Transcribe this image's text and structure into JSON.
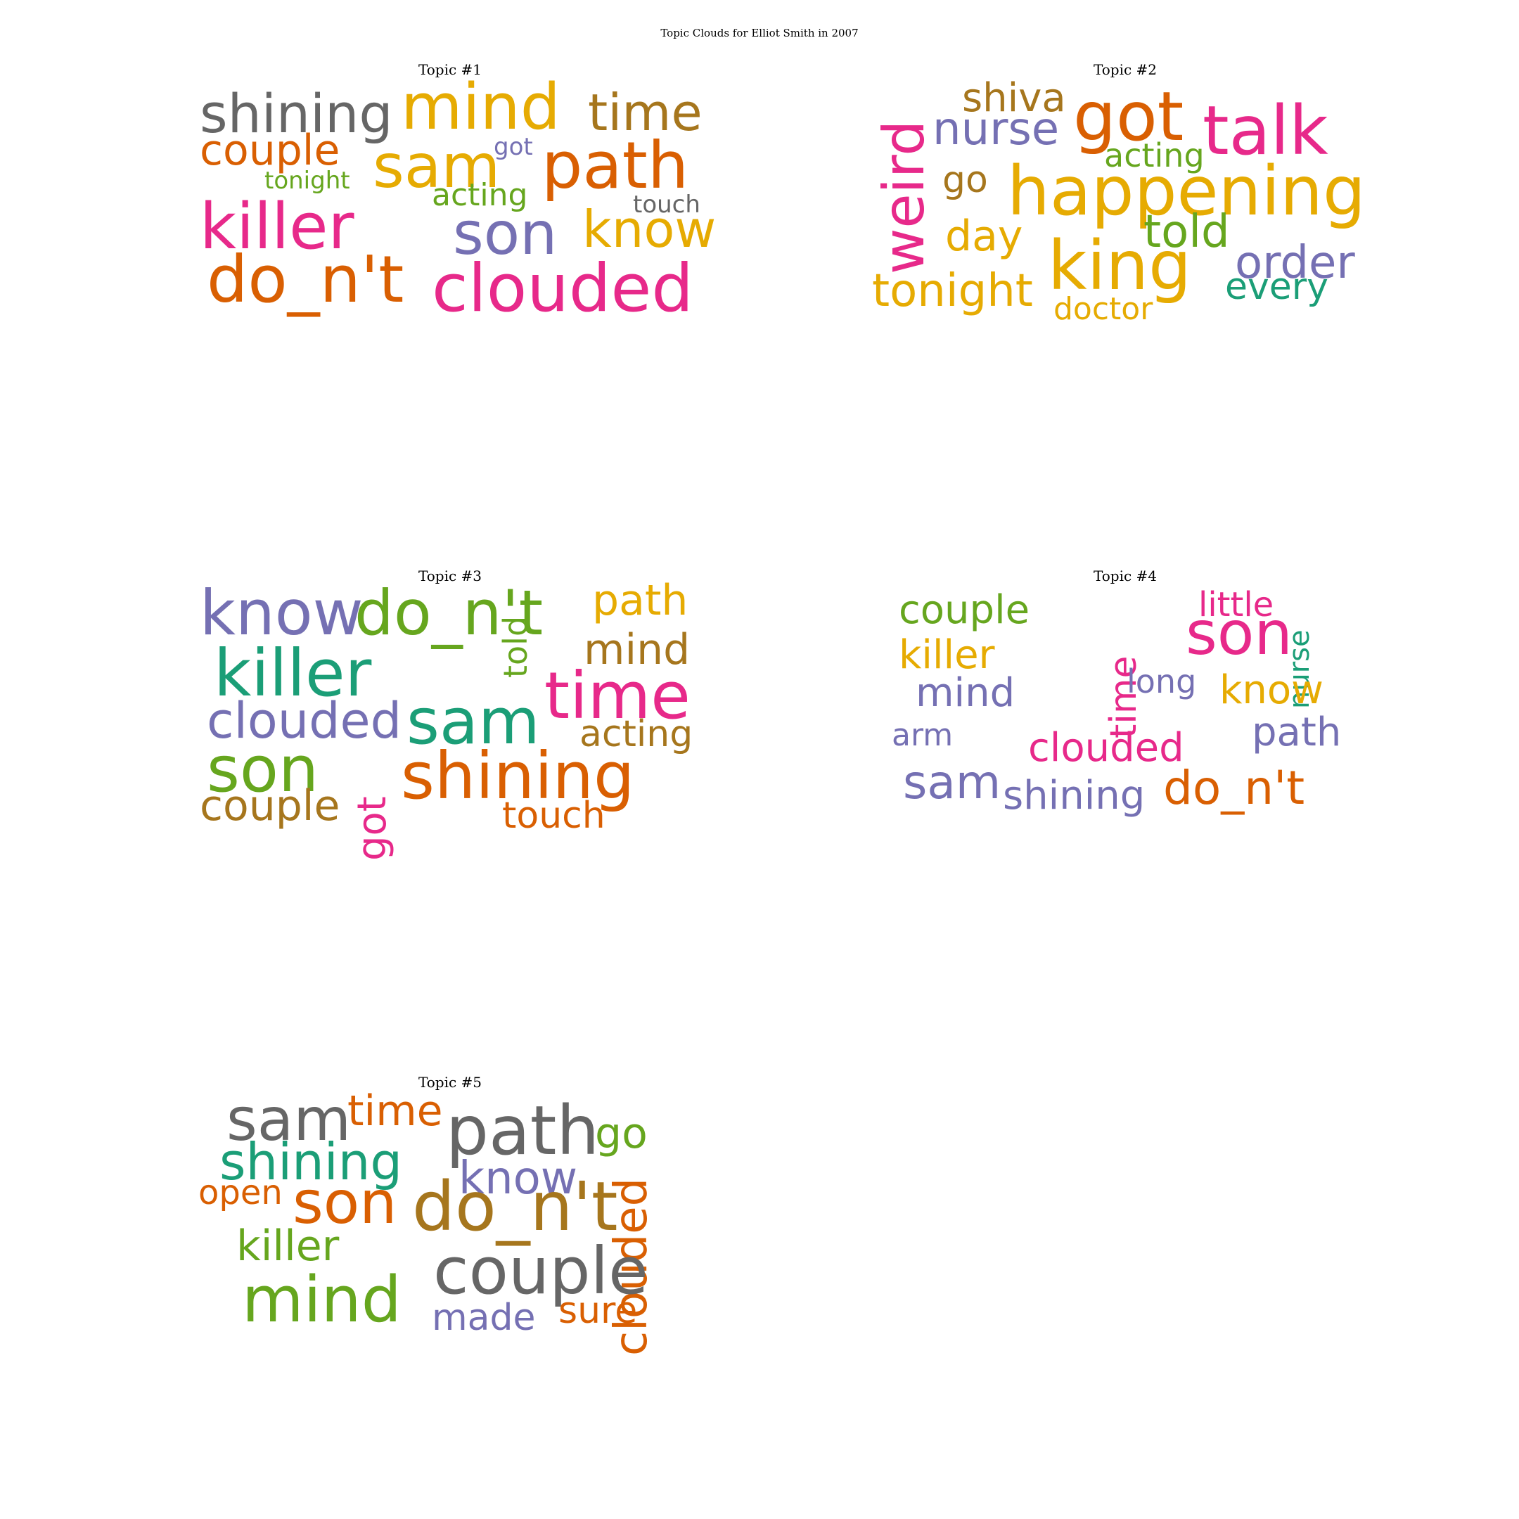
{
  "title": "Topic Clouds for Elliot Smith in 2007",
  "colors": {
    "magenta": "#e7298a",
    "orange": "#d95f02",
    "gold": "#e6ab02",
    "purple": "#7570b3",
    "green": "#66a61e",
    "teal": "#1b9e77",
    "brown": "#a6761d",
    "gray": "#666666"
  },
  "panels": [
    {
      "title": "Topic #1",
      "words": [
        {
          "text": "shining",
          "color": "gray"
        },
        {
          "text": "mind",
          "color": "gold"
        },
        {
          "text": "time",
          "color": "brown"
        },
        {
          "text": "couple",
          "color": "orange"
        },
        {
          "text": "got",
          "color": "purple"
        },
        {
          "text": "sam",
          "color": "gold"
        },
        {
          "text": "path",
          "color": "orange"
        },
        {
          "text": "tonight",
          "color": "green"
        },
        {
          "text": "acting",
          "color": "green"
        },
        {
          "text": "touch",
          "color": "gray"
        },
        {
          "text": "killer",
          "color": "magenta"
        },
        {
          "text": "son",
          "color": "purple"
        },
        {
          "text": "know",
          "color": "gold"
        },
        {
          "text": "do_n't",
          "color": "orange"
        },
        {
          "text": "clouded",
          "color": "magenta"
        }
      ]
    },
    {
      "title": "Topic #2",
      "words": [
        {
          "text": "weird",
          "color": "magenta"
        },
        {
          "text": "shiva",
          "color": "brown"
        },
        {
          "text": "nurse",
          "color": "purple"
        },
        {
          "text": "got",
          "color": "orange"
        },
        {
          "text": "talk",
          "color": "magenta"
        },
        {
          "text": "acting",
          "color": "green"
        },
        {
          "text": "go",
          "color": "brown"
        },
        {
          "text": "happening",
          "color": "gold"
        },
        {
          "text": "day",
          "color": "gold"
        },
        {
          "text": "told",
          "color": "green"
        },
        {
          "text": "king",
          "color": "gold"
        },
        {
          "text": "order",
          "color": "purple"
        },
        {
          "text": "tonight",
          "color": "gold"
        },
        {
          "text": "every",
          "color": "teal"
        },
        {
          "text": "doctor",
          "color": "gold"
        }
      ]
    },
    {
      "title": "Topic #3",
      "words": [
        {
          "text": "know",
          "color": "purple"
        },
        {
          "text": "do_n't",
          "color": "green"
        },
        {
          "text": "path",
          "color": "gold"
        },
        {
          "text": "told",
          "color": "green"
        },
        {
          "text": "mind",
          "color": "brown"
        },
        {
          "text": "killer",
          "color": "teal"
        },
        {
          "text": "time",
          "color": "magenta"
        },
        {
          "text": "clouded",
          "color": "purple"
        },
        {
          "text": "sam",
          "color": "teal"
        },
        {
          "text": "acting",
          "color": "brown"
        },
        {
          "text": "son",
          "color": "green"
        },
        {
          "text": "got",
          "color": "magenta"
        },
        {
          "text": "shining",
          "color": "orange"
        },
        {
          "text": "couple",
          "color": "brown"
        },
        {
          "text": "touch",
          "color": "orange"
        }
      ]
    },
    {
      "title": "Topic #4",
      "words": [
        {
          "text": "couple",
          "color": "green"
        },
        {
          "text": "little",
          "color": "magenta"
        },
        {
          "text": "time",
          "color": "magenta"
        },
        {
          "text": "son",
          "color": "magenta"
        },
        {
          "text": "nurse",
          "color": "teal"
        },
        {
          "text": "killer",
          "color": "gold"
        },
        {
          "text": "long",
          "color": "purple"
        },
        {
          "text": "mind",
          "color": "purple"
        },
        {
          "text": "know",
          "color": "gold"
        },
        {
          "text": "arm",
          "color": "purple"
        },
        {
          "text": "path",
          "color": "purple"
        },
        {
          "text": "clouded",
          "color": "magenta"
        },
        {
          "text": "sam",
          "color": "purple"
        },
        {
          "text": "shining",
          "color": "purple"
        },
        {
          "text": "do_n't",
          "color": "orange"
        }
      ]
    },
    {
      "title": "Topic #5",
      "words": [
        {
          "text": "sam",
          "color": "gray"
        },
        {
          "text": "time",
          "color": "orange"
        },
        {
          "text": "path",
          "color": "gray"
        },
        {
          "text": "go",
          "color": "green"
        },
        {
          "text": "clouded",
          "color": "orange"
        },
        {
          "text": "shining",
          "color": "teal"
        },
        {
          "text": "know",
          "color": "purple"
        },
        {
          "text": "open",
          "color": "orange"
        },
        {
          "text": "son",
          "color": "orange"
        },
        {
          "text": "do_n't",
          "color": "brown"
        },
        {
          "text": "killer",
          "color": "green"
        },
        {
          "text": "couple",
          "color": "gray"
        },
        {
          "text": "mind",
          "color": "green"
        },
        {
          "text": "sure",
          "color": "orange"
        },
        {
          "text": "made",
          "color": "purple"
        }
      ]
    }
  ]
}
